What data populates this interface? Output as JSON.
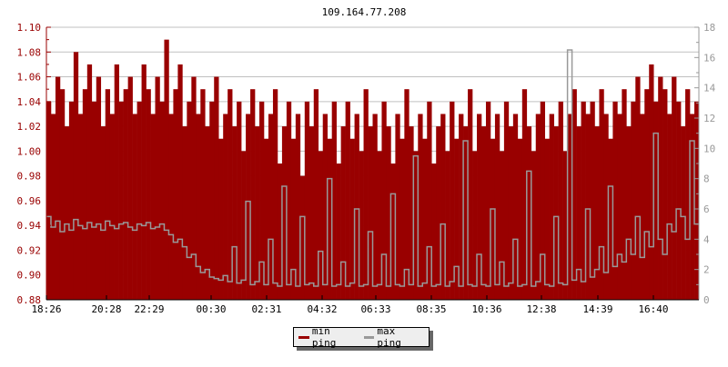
{
  "chart_data": {
    "type": "bar",
    "title": "109.164.77.208",
    "x_tick_labels": [
      "18:26",
      "20:28",
      "22:29",
      "00:30",
      "02:31",
      "04:32",
      "06:33",
      "08:35",
      "10:36",
      "12:38",
      "14:39",
      "16:40"
    ],
    "left_axis": {
      "range": [
        0.88,
        1.1
      ],
      "ticks": [
        "0.88",
        "0.90",
        "0.92",
        "0.94",
        "0.96",
        "0.98",
        "1.00",
        "1.02",
        "1.04",
        "1.06",
        "1.08",
        "1.10"
      ],
      "color": "#990000"
    },
    "right_axis": {
      "range": [
        0,
        18
      ],
      "ticks": [
        "0",
        "2",
        "4",
        "6",
        "8",
        "10",
        "12",
        "14",
        "16",
        "18"
      ],
      "color": "#999999"
    },
    "grid": true,
    "legend_placement": "bottom",
    "series": [
      {
        "name": "min ping",
        "axis": "left",
        "color": "#990000",
        "values": [
          1.04,
          1.03,
          1.06,
          1.05,
          1.02,
          1.04,
          1.08,
          1.03,
          1.05,
          1.07,
          1.04,
          1.06,
          1.02,
          1.05,
          1.03,
          1.07,
          1.04,
          1.05,
          1.06,
          1.03,
          1.04,
          1.07,
          1.05,
          1.03,
          1.06,
          1.04,
          1.09,
          1.03,
          1.05,
          1.07,
          1.02,
          1.04,
          1.06,
          1.03,
          1.05,
          1.02,
          1.04,
          1.06,
          1.01,
          1.03,
          1.05,
          1.02,
          1.04,
          1.0,
          1.03,
          1.05,
          1.02,
          1.04,
          1.01,
          1.03,
          1.05,
          0.99,
          1.02,
          1.04,
          1.01,
          1.03,
          0.98,
          1.04,
          1.02,
          1.05,
          1.0,
          1.03,
          1.01,
          1.04,
          0.99,
          1.02,
          1.04,
          1.01,
          1.03,
          1.0,
          1.05,
          1.02,
          1.03,
          1.0,
          1.04,
          1.02,
          0.99,
          1.03,
          1.01,
          1.05,
          1.02,
          1.0,
          1.03,
          1.01,
          1.04,
          0.99,
          1.02,
          1.03,
          1.0,
          1.04,
          1.01,
          1.03,
          1.02,
          1.05,
          1.0,
          1.03,
          1.02,
          1.04,
          1.01,
          1.03,
          1.0,
          1.04,
          1.02,
          1.03,
          1.01,
          1.05,
          1.02,
          1.0,
          1.03,
          1.04,
          1.01,
          1.03,
          1.02,
          1.04,
          1.0,
          1.03,
          1.05,
          1.02,
          1.04,
          1.03,
          1.04,
          1.02,
          1.05,
          1.03,
          1.01,
          1.04,
          1.03,
          1.05,
          1.02,
          1.04,
          1.06,
          1.03,
          1.05,
          1.07,
          1.04,
          1.06,
          1.05,
          1.03,
          1.06,
          1.04,
          1.02,
          1.05,
          1.03,
          1.04
        ]
      },
      {
        "name": "max ping",
        "axis": "right",
        "color": "#999999",
        "values": [
          5.5,
          4.8,
          5.2,
          4.5,
          5.0,
          4.6,
          5.3,
          4.9,
          4.7,
          5.1,
          4.8,
          5.0,
          4.6,
          5.2,
          4.9,
          4.7,
          5.0,
          5.1,
          4.8,
          4.6,
          5.0,
          4.9,
          5.1,
          4.7,
          4.8,
          5.0,
          4.6,
          4.3,
          3.8,
          4.0,
          3.5,
          2.8,
          3.0,
          2.2,
          1.8,
          2.0,
          1.5,
          1.4,
          1.3,
          1.6,
          1.2,
          3.5,
          1.1,
          1.3,
          6.5,
          1.0,
          1.2,
          2.5,
          1.0,
          4.0,
          1.1,
          0.9,
          7.5,
          1.0,
          2.0,
          0.9,
          5.5,
          1.0,
          1.1,
          0.9,
          3.2,
          1.0,
          8.0,
          0.9,
          1.0,
          2.5,
          0.9,
          1.1,
          6.0,
          0.9,
          1.0,
          4.5,
          0.9,
          1.0,
          3.0,
          0.9,
          7.0,
          1.0,
          0.9,
          2.0,
          1.0,
          9.5,
          0.9,
          1.1,
          3.5,
          0.9,
          1.0,
          5.0,
          0.9,
          1.2,
          2.2,
          0.9,
          10.5,
          1.0,
          0.9,
          3.0,
          1.0,
          0.9,
          6.0,
          1.0,
          2.5,
          0.9,
          1.1,
          4.0,
          0.9,
          1.0,
          8.5,
          0.9,
          1.2,
          3.0,
          1.0,
          0.9,
          5.5,
          1.1,
          1.0,
          16.5,
          1.3,
          2.0,
          1.2,
          6.0,
          1.5,
          2.0,
          3.5,
          1.8,
          7.5,
          2.2,
          3.0,
          2.5,
          4.0,
          3.0,
          5.5,
          2.8,
          4.5,
          3.5,
          11.0,
          4.0,
          3.0,
          5.0,
          4.5,
          6.0,
          5.5,
          4.0,
          10.5,
          5.0
        ]
      }
    ]
  }
}
